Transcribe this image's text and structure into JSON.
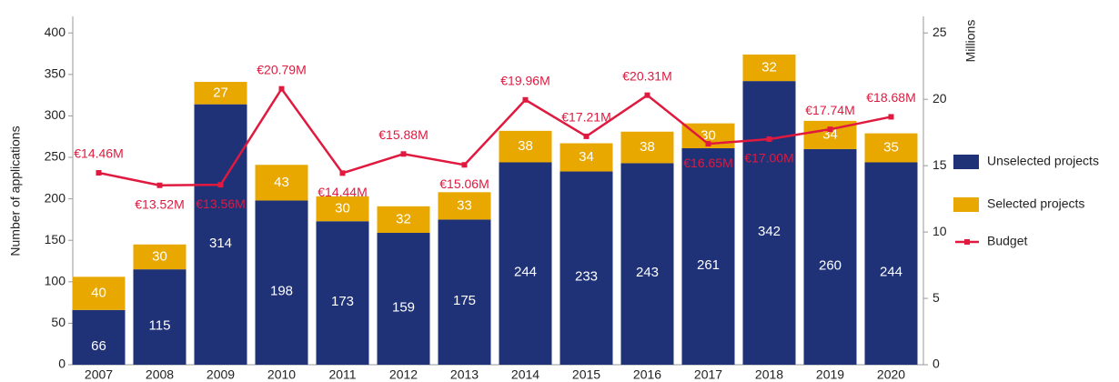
{
  "chart_data": {
    "type": "bar",
    "stacked": true,
    "y_label": "Number of applications",
    "y2_label": "Millions",
    "categories": [
      "2007",
      "2008",
      "2009",
      "2010",
      "2011",
      "2012",
      "2013",
      "2014",
      "2015",
      "2016",
      "2017",
      "2018",
      "2019",
      "2020"
    ],
    "series": [
      {
        "name": "Unselected projects",
        "color": "#1f3277",
        "values": [
          66,
          115,
          314,
          198,
          173,
          159,
          175,
          244,
          233,
          243,
          261,
          342,
          260,
          244
        ]
      },
      {
        "name": "Selected projects",
        "color": "#e8a800",
        "values": [
          40,
          30,
          27,
          43,
          30,
          32,
          33,
          38,
          34,
          38,
          30,
          32,
          34,
          35
        ]
      },
      {
        "name": "Budget",
        "type": "line",
        "axis": "y2",
        "color": "#e0193f",
        "values": [
          14.46,
          13.52,
          13.56,
          20.79,
          14.44,
          15.88,
          15.06,
          19.96,
          17.21,
          20.31,
          16.65,
          17.0,
          17.74,
          18.68
        ],
        "value_labels": [
          "€14.46M",
          "€13.52M",
          "€13.56M",
          "€20.79M",
          "€14.44M",
          "€15.88M",
          "€15.06M",
          "€19.96M",
          "€17.21M",
          "€20.31M",
          "€16.65M",
          "€17.00M",
          "€17.74M",
          "€18.68M"
        ]
      }
    ],
    "ylim": [
      0,
      420
    ],
    "yticks": [
      0,
      50,
      100,
      150,
      200,
      250,
      300,
      350,
      400
    ],
    "y2lim": [
      0,
      26.25
    ],
    "y2ticks": [
      0,
      5,
      10,
      15,
      20,
      25
    ],
    "legend": "right"
  }
}
